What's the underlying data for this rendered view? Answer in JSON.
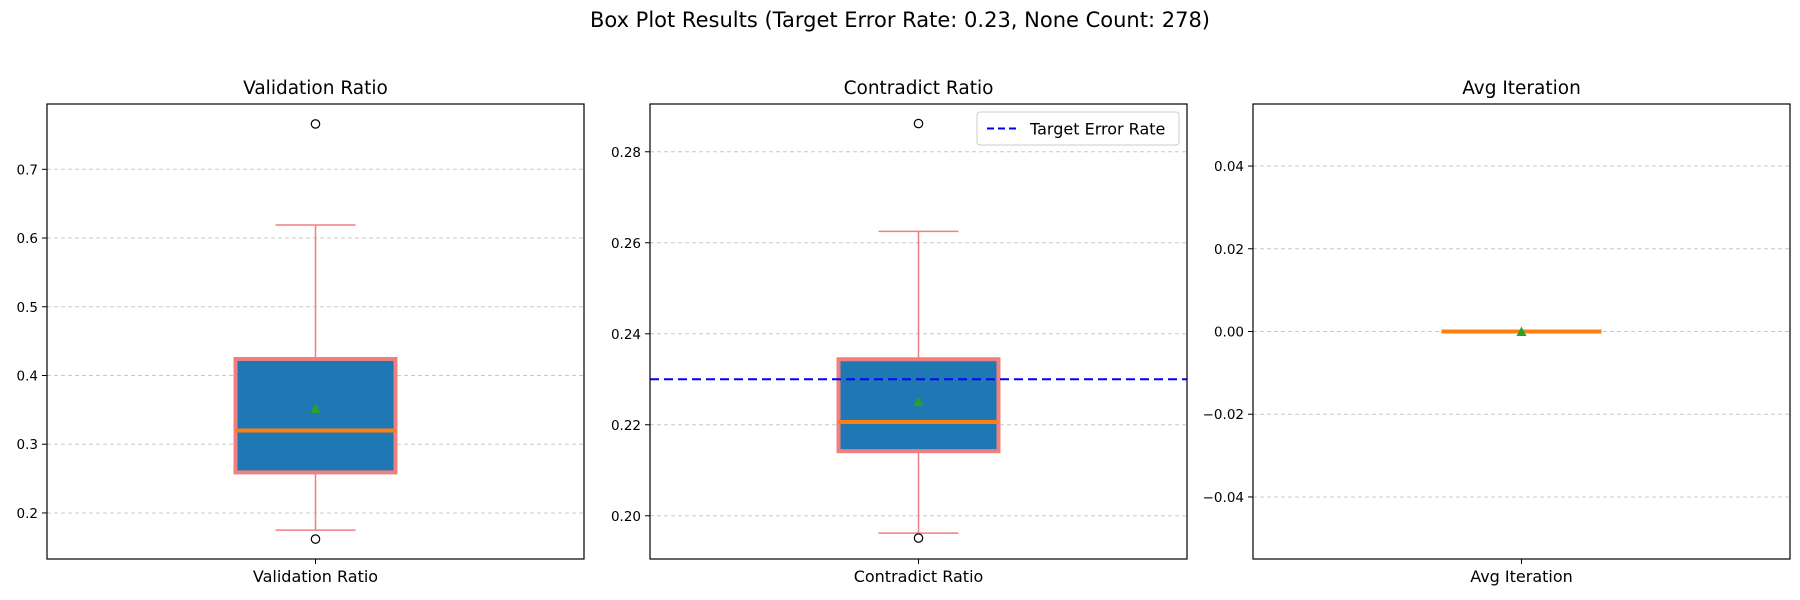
{
  "figure": {
    "title": "Box Plot Results (Target Error Rate: 0.23, None Count: 278)"
  },
  "chart_data": [
    {
      "type": "box",
      "title": "Validation Ratio",
      "category": "Validation Ratio",
      "ylim": [
        0.133,
        0.795
      ],
      "yticks": [
        0.2,
        0.3,
        0.4,
        0.5,
        0.6,
        0.7
      ],
      "tick_decimals": 1,
      "grid": true,
      "box": {
        "whisker_low": 0.175,
        "q1": 0.259,
        "median": 0.32,
        "q3": 0.424,
        "whisker_high": 0.619,
        "mean": 0.352,
        "outliers": [
          0.162,
          0.766
        ]
      }
    },
    {
      "type": "box",
      "title": "Contradict Ratio",
      "category": "Contradict Ratio",
      "ylim": [
        0.1905,
        0.2905
      ],
      "yticks": [
        0.2,
        0.22,
        0.24,
        0.26,
        0.28
      ],
      "tick_decimals": 2,
      "grid": true,
      "box": {
        "whisker_low": 0.1962,
        "q1": 0.2142,
        "median": 0.2206,
        "q3": 0.2344,
        "whisker_high": 0.2625,
        "mean": 0.2251,
        "outliers": [
          0.1951,
          0.2862
        ]
      },
      "reference_line": {
        "value": 0.23,
        "label": "Target Error Rate",
        "color": "#0000ff"
      },
      "legend": {
        "placement": "upper right",
        "entries": [
          "Target Error Rate"
        ]
      }
    },
    {
      "type": "box",
      "title": "Avg Iteration",
      "category": "Avg Iteration",
      "ylim": [
        -0.055,
        0.055
      ],
      "yticks": [
        -0.04,
        -0.02,
        0.0,
        0.02,
        0.04
      ],
      "tick_decimals": 2,
      "grid": true,
      "box": {
        "whisker_low": 0.0,
        "q1": 0.0,
        "median": 0.0,
        "q3": 0.0,
        "whisker_high": 0.0,
        "mean": 0.0,
        "outliers": []
      }
    }
  ],
  "colors": {
    "box_fill": "#1f77b4",
    "box_edge": "#f08080",
    "median": "#ff7f0e",
    "mean_marker": "#2ca02c",
    "grid": "#c8c8c8",
    "reference_line": "#0000ff"
  }
}
